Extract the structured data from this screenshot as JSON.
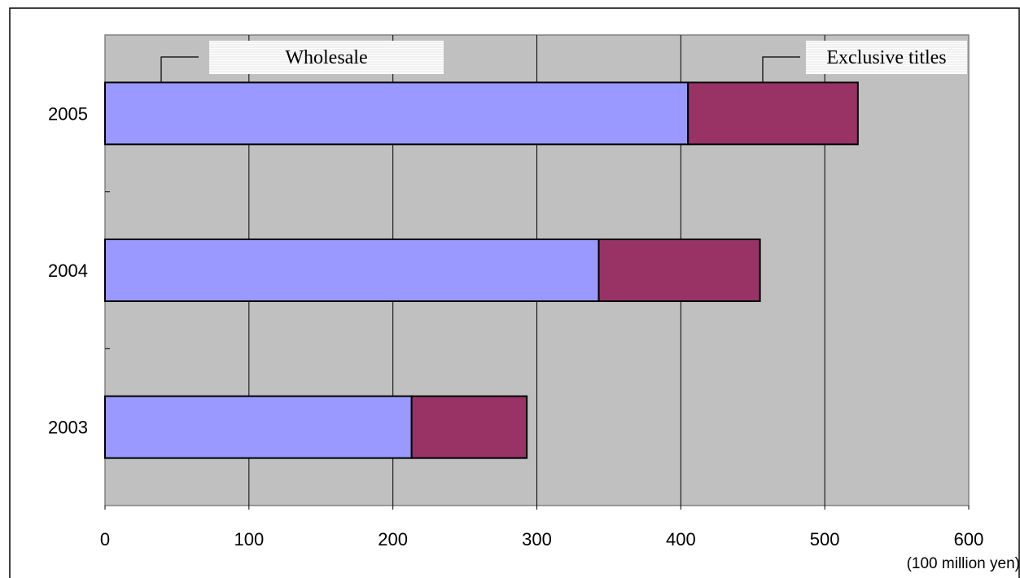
{
  "chart_data": {
    "type": "bar",
    "orientation": "horizontal",
    "stacked": true,
    "categories": [
      "2005",
      "2004",
      "2003"
    ],
    "series": [
      {
        "name": "Wholesale",
        "values": [
          405,
          343,
          213
        ],
        "color": "#9999ff"
      },
      {
        "name": "Exclusive titles",
        "values": [
          118,
          112,
          80
        ],
        "color": "#993366"
      }
    ],
    "x_ticks": [
      "0",
      "100",
      "200",
      "300",
      "400",
      "500",
      "600"
    ],
    "xlim": [
      0,
      600
    ],
    "unit_label": "(100 million yen)",
    "grid": true,
    "plot_background": "#c0c0c0",
    "legend": "callout labels above the 2005 bar"
  }
}
